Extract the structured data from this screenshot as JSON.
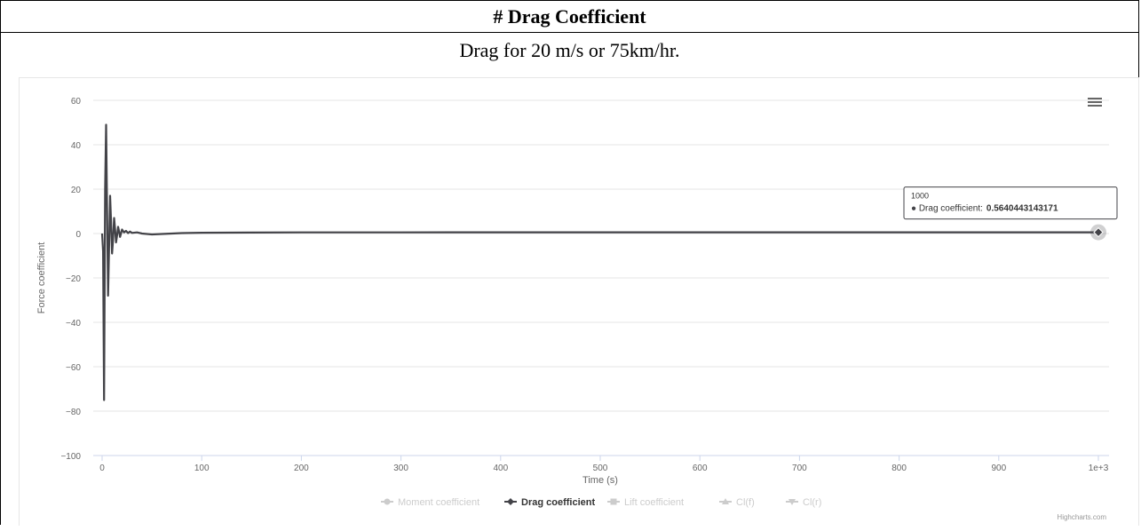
{
  "header": {
    "title": "# Drag Coefficient"
  },
  "subtitle": "Drag for 20 m/s or 75km/hr.",
  "chart_data": {
    "type": "line",
    "title": "",
    "xlabel": "Time (s)",
    "ylabel": "Force coefficient",
    "xlim": [
      0,
      1000
    ],
    "ylim": [
      -100,
      60
    ],
    "x_ticks": [
      "0",
      "100",
      "200",
      "300",
      "400",
      "500",
      "600",
      "700",
      "800",
      "900",
      "1e+3"
    ],
    "y_ticks": [
      "60",
      "40",
      "20",
      "0",
      "−20",
      "−40",
      "−60",
      "−80",
      "−100"
    ],
    "grid": "horizontal",
    "legend_position": "bottom",
    "series": [
      {
        "name": "Moment coefficient",
        "visible": false,
        "color": "#cccccc"
      },
      {
        "name": "Drag coefficient",
        "visible": true,
        "color": "#434348",
        "x": [
          0,
          1,
          2,
          3,
          4,
          5,
          6,
          7,
          8,
          9,
          10,
          11,
          12,
          13,
          14,
          15,
          16,
          17,
          18,
          19,
          20,
          22,
          24,
          26,
          28,
          30,
          35,
          40,
          50,
          60,
          80,
          100,
          150,
          200,
          300,
          400,
          500,
          600,
          700,
          800,
          900,
          1000
        ],
        "y": [
          0,
          -8,
          -75,
          20,
          49,
          10,
          -28,
          -5,
          17,
          5,
          -9,
          -3,
          7,
          2,
          -4,
          -1,
          3,
          1,
          -1.5,
          0,
          1.8,
          0.5,
          1.2,
          0.2,
          0.9,
          0.3,
          0.5,
          0,
          -0.4,
          -0.2,
          0.2,
          0.35,
          0.45,
          0.5,
          0.53,
          0.55,
          0.56,
          0.56,
          0.56,
          0.564,
          0.564,
          0.564
        ]
      },
      {
        "name": "Lift coefficient",
        "visible": false,
        "color": "#cccccc"
      },
      {
        "name": "Cl(f)",
        "visible": false,
        "color": "#cccccc"
      },
      {
        "name": "Cl(r)",
        "visible": false,
        "color": "#cccccc"
      }
    ],
    "tooltip": {
      "x_label": "1000",
      "series_label": "Drag coefficient:",
      "value": "0.5640443143171",
      "x": 1000,
      "y": 0.5640443143171
    },
    "credits": "Highcharts.com",
    "menu_icon": "hamburger-menu-icon"
  }
}
